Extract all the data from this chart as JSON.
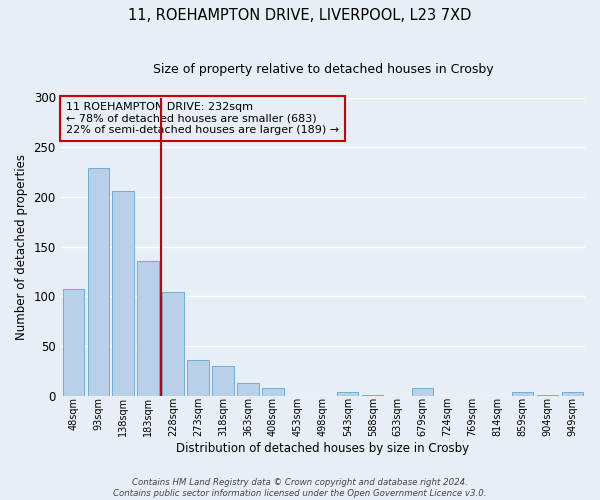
{
  "title_line1": "11, ROEHAMPTON DRIVE, LIVERPOOL, L23 7XD",
  "title_line2": "Size of property relative to detached houses in Crosby",
  "bar_labels": [
    "48sqm",
    "93sqm",
    "138sqm",
    "183sqm",
    "228sqm",
    "273sqm",
    "318sqm",
    "363sqm",
    "408sqm",
    "453sqm",
    "498sqm",
    "543sqm",
    "588sqm",
    "633sqm",
    "679sqm",
    "724sqm",
    "769sqm",
    "814sqm",
    "859sqm",
    "904sqm",
    "949sqm"
  ],
  "bar_values": [
    107,
    229,
    206,
    135,
    104,
    36,
    30,
    13,
    8,
    0,
    0,
    4,
    1,
    0,
    8,
    0,
    0,
    0,
    4,
    1,
    4
  ],
  "bar_color": "#b8d0e8",
  "bar_edge_color": "#6aaed6",
  "xlabel": "Distribution of detached houses by size in Crosby",
  "ylabel": "Number of detached properties",
  "ylim": [
    0,
    300
  ],
  "yticks": [
    0,
    50,
    100,
    150,
    200,
    250,
    300
  ],
  "property_line_color": "#cc0000",
  "annotation_box_text": "11 ROEHAMPTON DRIVE: 232sqm\n← 78% of detached houses are smaller (683)\n22% of semi-detached houses are larger (189) →",
  "footer_text": "Contains HM Land Registry data © Crown copyright and database right 2024.\nContains public sector information licensed under the Open Government Licence v3.0.",
  "background_color": "#e8eef5",
  "grid_color": "#ffffff",
  "title1_fontsize": 10.5,
  "title2_fontsize": 9,
  "ylabel_fontsize": 8.5,
  "xlabel_fontsize": 8.5,
  "ytick_fontsize": 8.5,
  "xtick_fontsize": 7
}
